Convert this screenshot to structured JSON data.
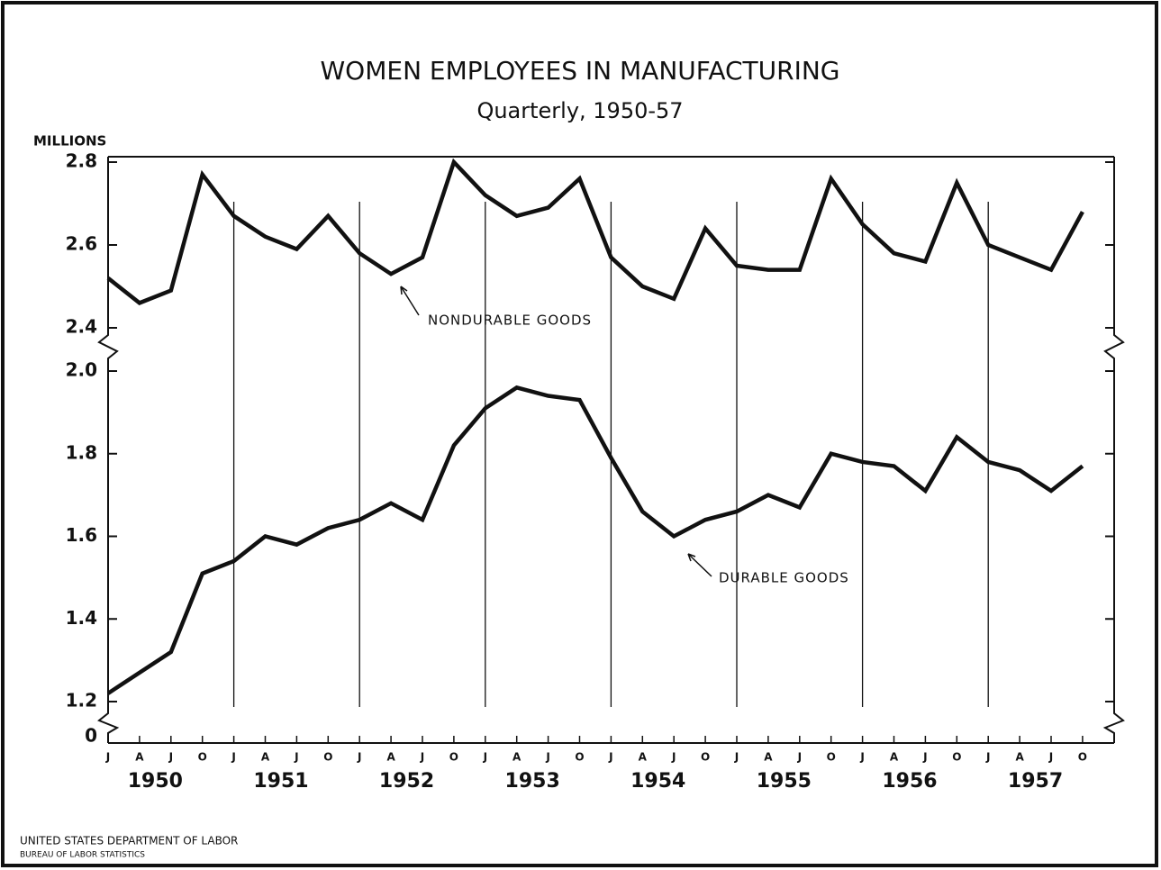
{
  "chart_data": [
    {
      "type": "line",
      "title": "WOMEN EMPLOYEES IN MANUFACTURING",
      "subtitle": "Quarterly, 1950-57",
      "ylabel": "MILLIONS",
      "ylim": [
        2.4,
        2.8
      ],
      "yticks": [
        2.4,
        2.6,
        2.8
      ],
      "series": [
        {
          "name": "NONDURABLE GOODS",
          "color": "#111111",
          "values": [
            2.52,
            2.46,
            2.49,
            2.77,
            2.67,
            2.62,
            2.59,
            2.67,
            2.58,
            2.53,
            2.57,
            2.8,
            2.72,
            2.67,
            2.69,
            2.76,
            2.57,
            2.5,
            2.47,
            2.64,
            2.55,
            2.54,
            2.54,
            2.76,
            2.65,
            2.58,
            2.56,
            2.75,
            2.6,
            2.57,
            2.54,
            2.68
          ]
        }
      ]
    },
    {
      "type": "line",
      "categories": [
        "J",
        "A",
        "J",
        "O",
        "J",
        "A",
        "J",
        "O",
        "J",
        "A",
        "J",
        "O",
        "J",
        "A",
        "J",
        "O",
        "J",
        "A",
        "J",
        "O",
        "J",
        "A",
        "J",
        "O",
        "J",
        "A",
        "J",
        "O",
        "J",
        "A",
        "J",
        "O"
      ],
      "years": [
        "1950",
        "1951",
        "1952",
        "1953",
        "1954",
        "1955",
        "1956",
        "1957"
      ],
      "ylim": [
        1.2,
        2.0
      ],
      "yticks": [
        1.2,
        1.4,
        1.6,
        1.8,
        {
          "value": 2,
          "label": "2.0"
        }
      ],
      "baseline_tick": 0,
      "series": [
        {
          "name": "DURABLE GOODS",
          "color": "#111111",
          "values": [
            1.22,
            1.27,
            1.32,
            1.51,
            1.54,
            1.6,
            1.58,
            1.62,
            1.64,
            1.68,
            1.64,
            1.82,
            1.91,
            1.96,
            1.94,
            1.93,
            1.79,
            1.66,
            1.6,
            1.64,
            1.66,
            1.7,
            1.67,
            1.8,
            1.78,
            1.77,
            1.71,
            1.84,
            1.78,
            1.76,
            1.71,
            1.77
          ]
        }
      ]
    }
  ],
  "source": [
    "UNITED STATES DEPARTMENT OF LABOR",
    "BUREAU OF LABOR STATISTICS"
  ]
}
